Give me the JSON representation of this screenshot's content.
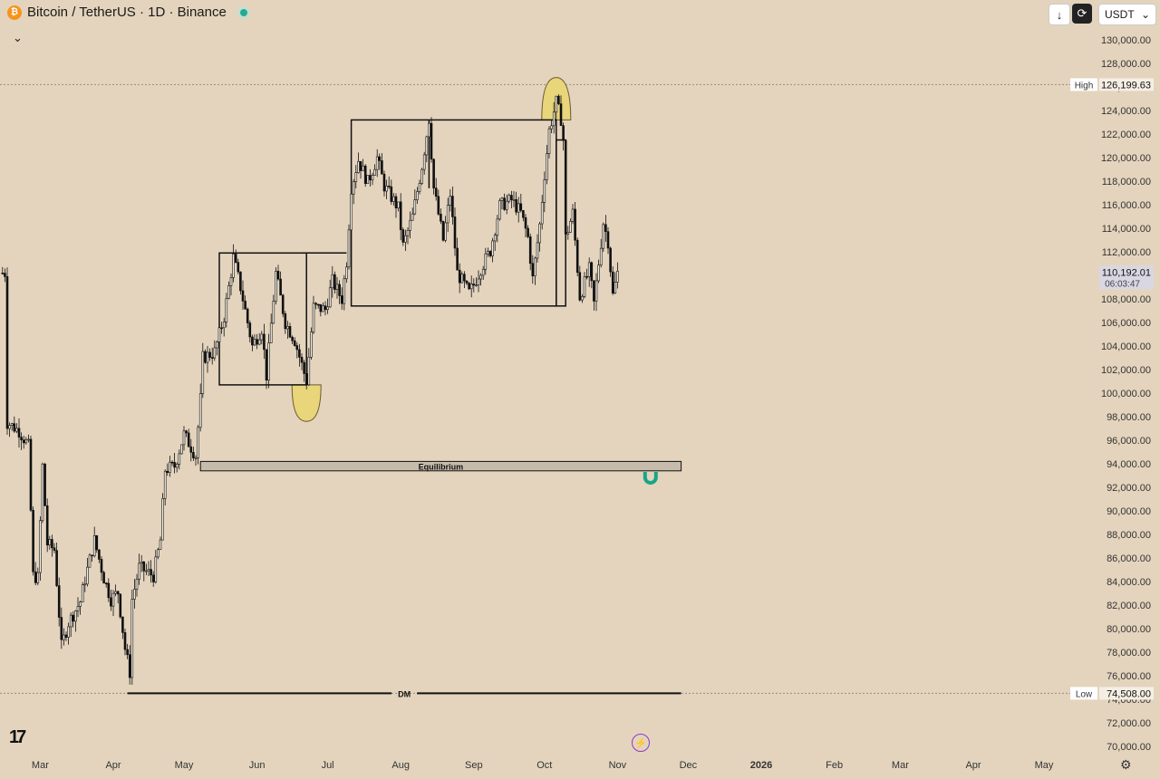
{
  "header": {
    "coin_symbol": "₿",
    "title": "Bitcoin / TetherUS · 1D · Binance"
  },
  "toolbar": {
    "download_icon": "↓",
    "sync_icon": "⟳",
    "currency": "USDT",
    "chevron": "⌄"
  },
  "collapse_icon": "⌄",
  "footer": {
    "logo": "17",
    "bolt_icon": "⚡",
    "settings_icon": "⚙"
  },
  "colors": {
    "background": "#e4d4bd",
    "candle": "#1a1a1a",
    "highlight": "#e9d57a",
    "magnet": "#17a589"
  },
  "chart_data": {
    "type": "candlestick",
    "symbol": "Bitcoin / TetherUS",
    "interval": "1D",
    "exchange": "Binance",
    "ylim": [
      69000,
      131000
    ],
    "y_ticks": [
      "70,000.00",
      "72,000.00",
      "74,000.00",
      "76,000.00",
      "78,000.00",
      "80,000.00",
      "82,000.00",
      "84,000.00",
      "86,000.00",
      "88,000.00",
      "90,000.00",
      "92,000.00",
      "94,000.00",
      "96,000.00",
      "98,000.00",
      "100,000.00",
      "102,000.00",
      "104,000.00",
      "106,000.00",
      "108,000.00",
      "110,000.00",
      "112,000.00",
      "114,000.00",
      "116,000.00",
      "118,000.00",
      "120,000.00",
      "122,000.00",
      "124,000.00",
      "126,000.00",
      "128,000.00",
      "130,000.00"
    ],
    "x_ticks": [
      {
        "label": "Mar",
        "date": "2025-03-01"
      },
      {
        "label": "Apr",
        "date": "2025-04-01"
      },
      {
        "label": "May",
        "date": "2025-05-01"
      },
      {
        "label": "Jun",
        "date": "2025-06-01"
      },
      {
        "label": "Jul",
        "date": "2025-07-01"
      },
      {
        "label": "Aug",
        "date": "2025-08-01"
      },
      {
        "label": "Sep",
        "date": "2025-09-01"
      },
      {
        "label": "Oct",
        "date": "2025-10-01"
      },
      {
        "label": "Nov",
        "date": "2025-11-01"
      },
      {
        "label": "Dec",
        "date": "2025-12-01"
      },
      {
        "label": "2026",
        "date": "2026-01-01",
        "bold": true
      },
      {
        "label": "Feb",
        "date": "2026-02-01"
      },
      {
        "label": "Mar",
        "date": "2026-03-01"
      },
      {
        "label": "Apr",
        "date": "2026-04-01"
      },
      {
        "label": "May",
        "date": "2026-05-01"
      }
    ],
    "high": {
      "label": "High",
      "value": "126,199.63",
      "price": 126199.63
    },
    "low": {
      "label": "Low",
      "value": "74,508.00",
      "price": 74508
    },
    "last": {
      "value": "110,192.01",
      "price": 110192.01,
      "countdown": "06:03:47"
    },
    "equilibrium": {
      "label": "Equilibrium",
      "from": "2025-05-08",
      "to": "2025-11-28",
      "top": 94200,
      "bottom": 93400
    },
    "dm_line": {
      "label": "DM",
      "price": 74508,
      "from": "2025-04-07",
      "to": "2025-11-28"
    },
    "ranges": [
      {
        "from": "2025-05-16",
        "to": "2025-06-22",
        "top": 111900,
        "bottom": 100700
      },
      {
        "from": "2025-06-20",
        "to": "2025-07-09",
        "top": 111900
      },
      {
        "from": "2025-07-11",
        "to": "2025-10-06",
        "top": 123200,
        "bottom": 107400
      },
      {
        "from": "2025-08-13",
        "to": "2025-08-13",
        "top": 123200,
        "bottom": 117400
      },
      {
        "from": "2025-10-06",
        "to": "2025-10-10",
        "top": 121500,
        "bottom": 107400
      }
    ],
    "highlights": [
      {
        "date": "2025-06-22",
        "price_top": 100700,
        "price_bottom": 97600,
        "shape": "bottom"
      },
      {
        "date": "2025-10-06",
        "price_top": 126800,
        "price_bottom": 123200,
        "shape": "top"
      }
    ],
    "closes": [
      {
        "date": "2025-02-15",
        "value": 97500
      },
      {
        "date": "2025-02-20",
        "value": 96800
      },
      {
        "date": "2025-02-24",
        "value": 95500
      },
      {
        "date": "2025-02-26",
        "value": 84500
      },
      {
        "date": "2025-02-28",
        "value": 84300
      },
      {
        "date": "2025-03-02",
        "value": 93800
      },
      {
        "date": "2025-03-04",
        "value": 87200
      },
      {
        "date": "2025-03-07",
        "value": 86700
      },
      {
        "date": "2025-03-10",
        "value": 78500
      },
      {
        "date": "2025-03-13",
        "value": 80500
      },
      {
        "date": "2025-03-18",
        "value": 82300
      },
      {
        "date": "2025-03-20",
        "value": 84200
      },
      {
        "date": "2025-03-24",
        "value": 87500
      },
      {
        "date": "2025-03-28",
        "value": 84300
      },
      {
        "date": "2025-03-31",
        "value": 82500
      },
      {
        "date": "2025-04-03",
        "value": 83100
      },
      {
        "date": "2025-04-06",
        "value": 78300
      },
      {
        "date": "2025-04-08",
        "value": 76300
      },
      {
        "date": "2025-04-09",
        "value": 82500
      },
      {
        "date": "2025-04-12",
        "value": 85200
      },
      {
        "date": "2025-04-18",
        "value": 84500
      },
      {
        "date": "2025-04-21",
        "value": 87500
      },
      {
        "date": "2025-04-23",
        "value": 93500
      },
      {
        "date": "2025-04-27",
        "value": 93800
      },
      {
        "date": "2025-05-01",
        "value": 96500
      },
      {
        "date": "2025-05-06",
        "value": 94700
      },
      {
        "date": "2025-05-08",
        "value": 99500
      },
      {
        "date": "2025-05-09",
        "value": 103000
      },
      {
        "date": "2025-05-14",
        "value": 103500
      },
      {
        "date": "2025-05-18",
        "value": 106500
      },
      {
        "date": "2025-05-22",
        "value": 111500
      },
      {
        "date": "2025-05-25",
        "value": 109000
      },
      {
        "date": "2025-05-30",
        "value": 104000
      },
      {
        "date": "2025-06-03",
        "value": 105500
      },
      {
        "date": "2025-06-05",
        "value": 101500
      },
      {
        "date": "2025-06-09",
        "value": 110200
      },
      {
        "date": "2025-06-13",
        "value": 106000
      },
      {
        "date": "2025-06-17",
        "value": 104500
      },
      {
        "date": "2025-06-22",
        "value": 101000
      },
      {
        "date": "2025-06-25",
        "value": 107300
      },
      {
        "date": "2025-06-30",
        "value": 107100
      },
      {
        "date": "2025-07-03",
        "value": 109500
      },
      {
        "date": "2025-07-07",
        "value": 108000
      },
      {
        "date": "2025-07-09",
        "value": 111200
      },
      {
        "date": "2025-07-11",
        "value": 117500
      },
      {
        "date": "2025-07-14",
        "value": 119800
      },
      {
        "date": "2025-07-18",
        "value": 117900
      },
      {
        "date": "2025-07-22",
        "value": 120000
      },
      {
        "date": "2025-07-25",
        "value": 117600
      },
      {
        "date": "2025-07-31",
        "value": 115700
      },
      {
        "date": "2025-08-02",
        "value": 112500
      },
      {
        "date": "2025-08-06",
        "value": 115000
      },
      {
        "date": "2025-08-10",
        "value": 119300
      },
      {
        "date": "2025-08-13",
        "value": 123300
      },
      {
        "date": "2025-08-15",
        "value": 117400
      },
      {
        "date": "2025-08-19",
        "value": 113000
      },
      {
        "date": "2025-08-22",
        "value": 116900
      },
      {
        "date": "2025-08-25",
        "value": 110200
      },
      {
        "date": "2025-08-30",
        "value": 108500
      },
      {
        "date": "2025-09-01",
        "value": 109200
      },
      {
        "date": "2025-09-04",
        "value": 110600
      },
      {
        "date": "2025-09-08",
        "value": 112100
      },
      {
        "date": "2025-09-12",
        "value": 115900
      },
      {
        "date": "2025-09-17",
        "value": 116400
      },
      {
        "date": "2025-09-21",
        "value": 115300
      },
      {
        "date": "2025-09-24",
        "value": 113200
      },
      {
        "date": "2025-09-26",
        "value": 109700
      },
      {
        "date": "2025-09-29",
        "value": 114300
      },
      {
        "date": "2025-10-01",
        "value": 118600
      },
      {
        "date": "2025-10-03",
        "value": 122300
      },
      {
        "date": "2025-10-06",
        "value": 124700
      },
      {
        "date": "2025-10-08",
        "value": 123300
      },
      {
        "date": "2025-10-09",
        "value": 121500
      },
      {
        "date": "2025-10-10",
        "value": 113200
      },
      {
        "date": "2025-10-13",
        "value": 115300
      },
      {
        "date": "2025-10-16",
        "value": 108200
      },
      {
        "date": "2025-10-20",
        "value": 110500
      },
      {
        "date": "2025-10-22",
        "value": 107600
      },
      {
        "date": "2025-10-26",
        "value": 114500
      },
      {
        "date": "2025-10-28",
        "value": 112900
      },
      {
        "date": "2025-10-30",
        "value": 108300
      },
      {
        "date": "2025-11-01",
        "value": 110200
      }
    ]
  }
}
